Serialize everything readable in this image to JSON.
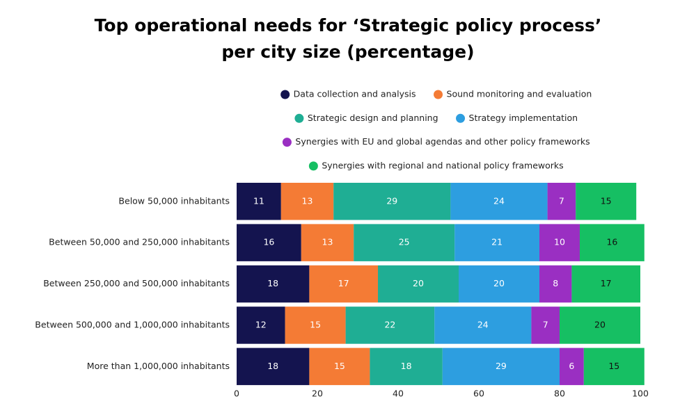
{
  "chart_data": {
    "type": "stacked_barh",
    "title": [
      "Top operational needs for ‘Strategic policy process’",
      "per city size (percentage)"
    ],
    "categories": [
      "Below 50,000 inhabitants",
      "Between 50,000 and 250,000 inhabitants",
      "Between 250,000 and 500,000 inhabitants",
      "Between 500,000 and 1,000,000 inhabitants",
      "More than 1,000,000 inhabitants"
    ],
    "series": [
      {
        "name": "Data collection and analysis",
        "color": "#14144f",
        "label_color": "#ffffff",
        "values": [
          11,
          16,
          18,
          12,
          18
        ]
      },
      {
        "name": "Sound monitoring and evaluation",
        "color": "#f47b35",
        "label_color": "#ffffff",
        "values": [
          13,
          13,
          17,
          15,
          15
        ]
      },
      {
        "name": "Strategic design and planning",
        "color": "#1fae94",
        "label_color": "#ffffff",
        "values": [
          29,
          25,
          20,
          22,
          18
        ]
      },
      {
        "name": "Strategy implementation",
        "color": "#2d9ee0",
        "label_color": "#ffffff",
        "values": [
          24,
          21,
          20,
          24,
          29
        ]
      },
      {
        "name": "Synergies with EU and global agendas and other policy frameworks",
        "color": "#9a2fc2",
        "label_color": "#ffffff",
        "values": [
          7,
          10,
          8,
          7,
          6
        ]
      },
      {
        "name": "Synergies with regional and national policy frameworks",
        "color": "#16bf63",
        "label_color": "#111111",
        "values": [
          15,
          16,
          17,
          20,
          15
        ]
      }
    ],
    "xlim": [
      0,
      100
    ],
    "xticks": [
      0,
      20,
      40,
      60,
      80,
      100
    ]
  }
}
